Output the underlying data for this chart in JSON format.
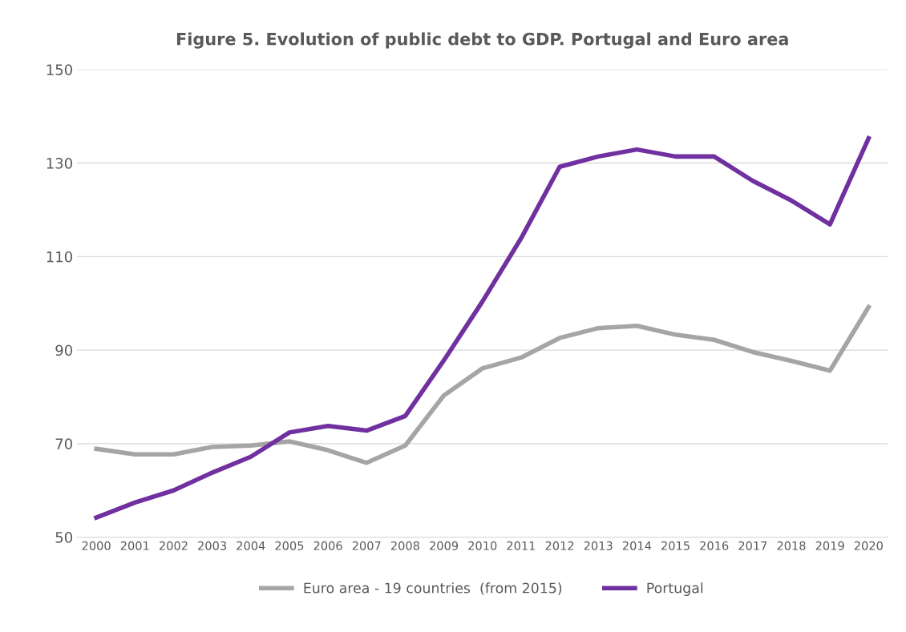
{
  "chart_data": {
    "type": "line",
    "title": "Figure 5. Evolution of public debt to GDP. Portugal and Euro area",
    "categories": [
      "2000",
      "2001",
      "2002",
      "2003",
      "2004",
      "2005",
      "2006",
      "2007",
      "2008",
      "2009",
      "2010",
      "2011",
      "2012",
      "2013",
      "2014",
      "2015",
      "2016",
      "2017",
      "2018",
      "2019",
      "2020"
    ],
    "series": [
      {
        "name": "Euro area - 19 countries  (from 2015)",
        "color": "#a5a5a5",
        "values": [
          68.9,
          67.7,
          67.7,
          69.3,
          69.6,
          70.5,
          68.6,
          65.9,
          69.6,
          80.3,
          86.1,
          88.4,
          92.6,
          94.7,
          95.2,
          93.3,
          92.2,
          89.6,
          87.7,
          85.6,
          99.2
        ]
      },
      {
        "name": "Portugal",
        "color": "#7030a0",
        "values": [
          54.2,
          57.4,
          60.0,
          63.8,
          67.2,
          72.4,
          73.8,
          72.8,
          75.9,
          87.8,
          100.4,
          113.9,
          129.2,
          131.4,
          132.9,
          131.4,
          131.4,
          126.2,
          122.0,
          116.9,
          135.3
        ]
      }
    ],
    "ylim": [
      50,
      150
    ],
    "yticks": [
      50,
      70,
      90,
      110,
      130,
      150
    ],
    "grid": "y",
    "legend": "bottom",
    "marker": "none",
    "line_style": "solid"
  }
}
